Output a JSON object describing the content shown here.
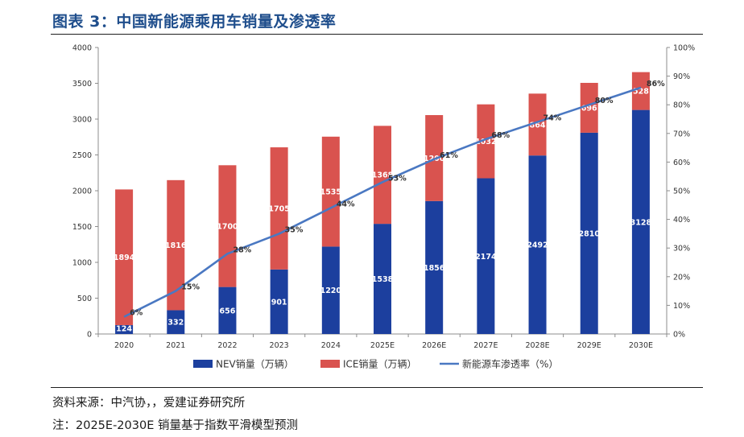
{
  "header": {
    "title": "图表 3：中国新能源乘用车销量及渗透率"
  },
  "chart_data": {
    "type": "bar",
    "stacked": true,
    "categories": [
      "2020",
      "2021",
      "2022",
      "2023",
      "2024",
      "2025E",
      "2026E",
      "2027E",
      "2028E",
      "2029E",
      "2030E"
    ],
    "series": [
      {
        "name": "NEV销量（万辆）",
        "kind": "bar",
        "axis": "left",
        "color": "#1c3f9e",
        "values": [
          124,
          332,
          656,
          901,
          1220,
          1538,
          1856,
          2174,
          2492,
          2810,
          3128
        ]
      },
      {
        "name": "ICE销量（万辆）",
        "kind": "bar",
        "axis": "left",
        "color": "#d9534f",
        "values": [
          1894,
          1816,
          1700,
          1705,
          1535,
          1368,
          1200,
          1032,
          864,
          696,
          528
        ]
      },
      {
        "name": "新能源车渗透率（%）",
        "kind": "line",
        "axis": "right",
        "color": "#4a78c2",
        "values": [
          6,
          15,
          28,
          35,
          44,
          53,
          61,
          68,
          74,
          80,
          86
        ]
      }
    ],
    "y_left": {
      "min": 0,
      "max": 4000,
      "ticks": [
        "0",
        "500",
        "1000",
        "1500",
        "2000",
        "2500",
        "3000",
        "3500",
        "4000"
      ]
    },
    "y_right": {
      "min": 0,
      "max": 100,
      "ticks": [
        "0%",
        "10%",
        "20%",
        "30%",
        "40%",
        "50%",
        "60%",
        "70%",
        "80%",
        "90%",
        "100%"
      ]
    },
    "grid": false,
    "legend_position": "bottom"
  },
  "footer": {
    "source": "资料来源：中汽协，，爱建证券研究所",
    "note": "注：2025E-2030E 销量基于指数平滑模型预测"
  }
}
